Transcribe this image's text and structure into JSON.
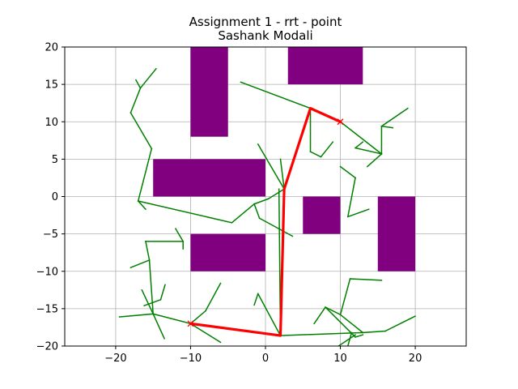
{
  "chart_data": {
    "type": "scatter",
    "title": "Assignment 1 - rrt - point",
    "subtitle": "Sashank Modali",
    "xlabel": "",
    "ylabel": "",
    "xlim": [
      -26.8,
      26.8
    ],
    "ylim": [
      -20,
      20
    ],
    "x_ticks": [
      -20,
      -10,
      0,
      10,
      20
    ],
    "y_ticks": [
      -20,
      -15,
      -10,
      -5,
      0,
      5,
      10,
      15,
      20
    ],
    "grid": true,
    "colors": {
      "obstacle": "#800080",
      "tree": "#008000",
      "path": "#ff0000",
      "grid": "#b0b0b0"
    },
    "obstacles": [
      {
        "x_range": [
          -10,
          -5
        ],
        "y_range": [
          8,
          20
        ]
      },
      {
        "x_range": [
          3,
          13
        ],
        "y_range": [
          15,
          20
        ]
      },
      {
        "x_range": [
          -15,
          0
        ],
        "y_range": [
          0,
          5
        ]
      },
      {
        "x_range": [
          5,
          10
        ],
        "y_range": [
          -5,
          0
        ]
      },
      {
        "x_range": [
          15,
          20
        ],
        "y_range": [
          -10,
          0
        ]
      },
      {
        "x_range": [
          -10,
          0
        ],
        "y_range": [
          -10,
          -5
        ]
      }
    ],
    "tree_edges": [
      [
        [
          -10,
          -17
        ],
        [
          2,
          -18.6
        ]
      ],
      [
        [
          -10,
          -17
        ],
        [
          -8,
          -15.3
        ]
      ],
      [
        [
          -8,
          -15.3
        ],
        [
          -6,
          -11.6
        ]
      ],
      [
        [
          -10,
          -17
        ],
        [
          -6,
          -19.5
        ]
      ],
      [
        [
          -10,
          -17
        ],
        [
          -15,
          -15.7
        ]
      ],
      [
        [
          -15,
          -15.7
        ],
        [
          -19.5,
          -16.1
        ]
      ],
      [
        [
          -15,
          -15.7
        ],
        [
          -13.5,
          -19
        ]
      ],
      [
        [
          -15,
          -15.7
        ],
        [
          -16.5,
          -12.5
        ]
      ],
      [
        [
          -15,
          -15.7
        ],
        [
          -15.5,
          -8.5
        ]
      ],
      [
        [
          -15.5,
          -8.5
        ],
        [
          -18,
          -9.5
        ]
      ],
      [
        [
          -15.5,
          -8.5
        ],
        [
          -16,
          -6
        ]
      ],
      [
        [
          -16,
          -6
        ],
        [
          -11,
          -6
        ]
      ],
      [
        [
          -11,
          -6
        ],
        [
          -12,
          -4.3
        ]
      ],
      [
        [
          -11,
          -6
        ],
        [
          -11,
          -7
        ]
      ],
      [
        [
          -14,
          -13.8
        ],
        [
          -16.2,
          -14.6
        ]
      ],
      [
        [
          -14,
          -13.8
        ],
        [
          -13.4,
          -11.8
        ]
      ],
      [
        [
          2,
          -18.6
        ],
        [
          1.8,
          1
        ]
      ],
      [
        [
          2,
          -18.6
        ],
        [
          -1,
          -13
        ]
      ],
      [
        [
          -1,
          -13
        ],
        [
          -1.5,
          -14.5
        ]
      ],
      [
        [
          2,
          -18.6
        ],
        [
          13,
          -18.2
        ]
      ],
      [
        [
          13,
          -18.2
        ],
        [
          16,
          -18
        ]
      ],
      [
        [
          16,
          -18
        ],
        [
          20,
          -16
        ]
      ],
      [
        [
          13,
          -18.2
        ],
        [
          10,
          -15.8
        ]
      ],
      [
        [
          10,
          -15.8
        ],
        [
          11.3,
          -11
        ]
      ],
      [
        [
          11.3,
          -11
        ],
        [
          15.5,
          -11.2
        ]
      ],
      [
        [
          10,
          -15.8
        ],
        [
          8,
          -14.8
        ]
      ],
      [
        [
          8,
          -14.8
        ],
        [
          6.5,
          -17
        ]
      ],
      [
        [
          8,
          -14.8
        ],
        [
          12,
          -18.8
        ]
      ],
      [
        [
          12,
          -18.8
        ],
        [
          13,
          -18.5
        ]
      ],
      [
        [
          11.5,
          -18.2
        ],
        [
          11,
          -20
        ]
      ],
      [
        [
          12,
          -18.5
        ],
        [
          9,
          -20.5
        ]
      ],
      [
        [
          2.5,
          1
        ],
        [
          6,
          11.8
        ]
      ],
      [
        [
          2.5,
          1
        ],
        [
          2,
          5
        ]
      ],
      [
        [
          2.5,
          1
        ],
        [
          -1,
          7
        ]
      ],
      [
        [
          2.5,
          1
        ],
        [
          0.4,
          -0.3
        ]
      ],
      [
        [
          0.4,
          -0.3
        ],
        [
          -1.5,
          -1
        ]
      ],
      [
        [
          -1.5,
          -1
        ],
        [
          -4.5,
          -3.5
        ]
      ],
      [
        [
          -1.5,
          -1
        ],
        [
          -0.8,
          -2.9
        ]
      ],
      [
        [
          -0.8,
          -2.9
        ],
        [
          3.6,
          -5.3
        ]
      ],
      [
        [
          -4.5,
          -3.5
        ],
        [
          -17,
          -0.6
        ]
      ],
      [
        [
          -17,
          -0.6
        ],
        [
          -16,
          -1.7
        ]
      ],
      [
        [
          -17,
          -0.6
        ],
        [
          -15.2,
          6.4
        ]
      ],
      [
        [
          -15.2,
          6.4
        ],
        [
          -18,
          11.2
        ]
      ],
      [
        [
          -18,
          11.2
        ],
        [
          -16.7,
          14.5
        ]
      ],
      [
        [
          -16.7,
          14.5
        ],
        [
          -17.3,
          15.6
        ]
      ],
      [
        [
          -16.7,
          14.5
        ],
        [
          -14.6,
          17.1
        ]
      ],
      [
        [
          6,
          11.8
        ],
        [
          -3.3,
          15.3
        ]
      ],
      [
        [
          6,
          11.8
        ],
        [
          10,
          10
        ]
      ],
      [
        [
          6,
          11.8
        ],
        [
          6,
          6
        ]
      ],
      [
        [
          6,
          6
        ],
        [
          7.4,
          5.3
        ]
      ],
      [
        [
          7.4,
          5.3
        ],
        [
          9,
          7.3
        ]
      ],
      [
        [
          10,
          10
        ],
        [
          15.5,
          5.7
        ]
      ],
      [
        [
          15.5,
          5.7
        ],
        [
          15.5,
          9.4
        ]
      ],
      [
        [
          15.5,
          9.4
        ],
        [
          19,
          11.8
        ]
      ],
      [
        [
          15.5,
          9.4
        ],
        [
          17,
          9.2
        ]
      ],
      [
        [
          15.5,
          5.7
        ],
        [
          13.6,
          4
        ]
      ],
      [
        [
          15.5,
          5.7
        ],
        [
          12,
          6.5
        ]
      ],
      [
        [
          12,
          6.5
        ],
        [
          13,
          7.3
        ]
      ],
      [
        [
          12,
          2.5
        ],
        [
          10,
          4
        ]
      ],
      [
        [
          12,
          2.5
        ],
        [
          11,
          -2.7
        ]
      ],
      [
        [
          11,
          -2.7
        ],
        [
          13.8,
          -1.7
        ]
      ]
    ],
    "path": [
      [
        -10,
        -17
      ],
      [
        2,
        -18.6
      ],
      [
        2.5,
        1
      ],
      [
        6,
        11.8
      ],
      [
        10,
        10
      ]
    ],
    "markers": [
      {
        "x": -10,
        "y": -17,
        "symbol": "x"
      },
      {
        "x": 10,
        "y": 10,
        "symbol": "x"
      }
    ]
  }
}
